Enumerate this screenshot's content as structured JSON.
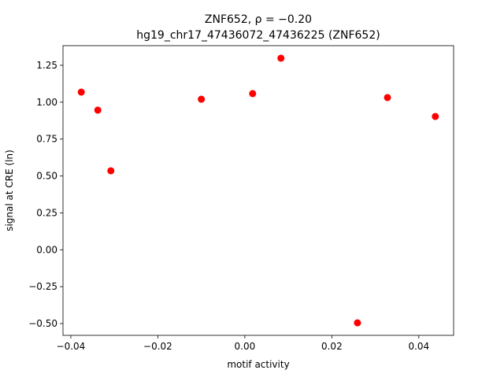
{
  "chart_data": {
    "type": "scatter",
    "title": "ZNF652, ρ = −0.20",
    "subtitle": "hg19_chr17_47436072_47436225 (ZNF652)",
    "xlabel": "motif activity",
    "ylabel": "signal at CRE (ln)",
    "series": [
      {
        "color": "#ff0000",
        "x": [
          -0.0376,
          -0.0338,
          -0.0308,
          -0.01,
          0.0018,
          0.0083,
          0.0259,
          0.0328,
          0.0438
        ],
        "values": [
          1.068,
          0.946,
          0.535,
          1.02,
          1.058,
          1.298,
          -0.495,
          1.031,
          0.903
        ]
      }
    ],
    "xlim": [
      -0.0418,
      0.048
    ],
    "ylim": [
      -0.58,
      1.383
    ],
    "xticks": [
      {
        "value": -0.04,
        "label": "−0.04"
      },
      {
        "value": -0.02,
        "label": "−0.02"
      },
      {
        "value": 0,
        "label": "0.00"
      },
      0.02,
      0.04
    ],
    "yticks": [
      {
        "value": -0.5,
        "label": "−0.50"
      },
      {
        "value": -0.25,
        "label": "−0.25"
      },
      {
        "value": 0,
        "label": "0.00"
      },
      0.25,
      {
        "value": 0.5,
        "label": "0.50"
      },
      0.75,
      {
        "value": 1,
        "label": "1.00"
      },
      1.25
    ],
    "grid": false
  }
}
